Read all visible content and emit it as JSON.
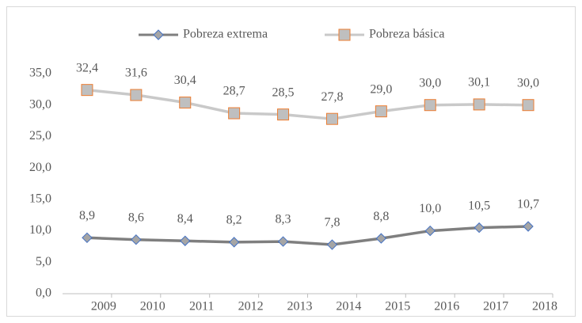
{
  "chart_data": {
    "type": "line",
    "categories": [
      "2009",
      "2010",
      "2011",
      "2012",
      "2013",
      "2014",
      "2015",
      "2016",
      "2017",
      "2018"
    ],
    "series": [
      {
        "name": "Pobreza extrema",
        "color": "#7f7f7f",
        "marker": "diamond",
        "marker_fill": "#a5a5a5",
        "marker_edge": "#4472c4",
        "values": [
          8.9,
          8.6,
          8.4,
          8.2,
          8.3,
          7.8,
          8.8,
          10.0,
          10.5,
          10.7
        ],
        "value_labels": [
          "8,9",
          "8,6",
          "8,4",
          "8,2",
          "8,3",
          "7,8",
          "8,8",
          "10,0",
          "10,5",
          "10,7"
        ]
      },
      {
        "name": "Pobreza básica",
        "color": "#c9c9c9",
        "marker": "square",
        "marker_fill": "#bfbfbf",
        "marker_edge": "#ed7d31",
        "values": [
          32.4,
          31.6,
          30.4,
          28.7,
          28.5,
          27.8,
          29.0,
          30.0,
          30.1,
          30.0
        ],
        "value_labels": [
          "32,4",
          "31,6",
          "30,4",
          "28,7",
          "28,5",
          "27,8",
          "29,0",
          "30,0",
          "30,1",
          "30,0"
        ]
      }
    ],
    "ylim": [
      0,
      35
    ],
    "yticks": [
      {
        "value": 0,
        "label": "0,0"
      },
      {
        "value": 5,
        "label": "5,0"
      },
      {
        "value": 10,
        "label": "10,0"
      },
      {
        "value": 15,
        "label": "15,0"
      },
      {
        "value": 20,
        "label": "20,0"
      },
      {
        "value": 25,
        "label": "25,0"
      },
      {
        "value": 30,
        "label": "30,0"
      },
      {
        "value": 35,
        "label": "35,0"
      }
    ],
    "grid": false,
    "legend": "top"
  }
}
